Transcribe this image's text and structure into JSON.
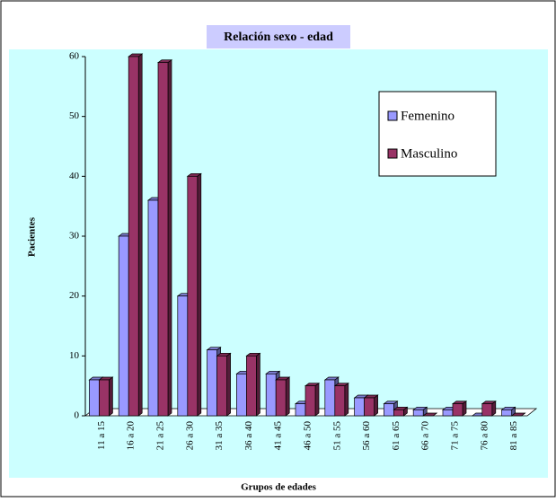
{
  "chart_data": {
    "type": "bar",
    "title": "Relación sexo - edad",
    "x_label": "Grupos de edades",
    "y_label": "Pacientes",
    "categories": [
      "11 a 15",
      "16 a 20",
      "21 a 25",
      "26 a 30",
      "31 a 35",
      "36 a 40",
      "41 a 45",
      "46 a 50",
      "51 a 55",
      "56 a 60",
      "61 a 65",
      "66 a 70",
      "71 a 75",
      "76 a 80",
      "81 a 85"
    ],
    "series": [
      {
        "name": "Femenino",
        "color": "#9999ff",
        "values": [
          6,
          30,
          36,
          20,
          11,
          7,
          7,
          2,
          6,
          3,
          2,
          1,
          1,
          0,
          1
        ]
      },
      {
        "name": "Masculino",
        "color": "#993366",
        "values": [
          6,
          60,
          59,
          40,
          10,
          10,
          6,
          5,
          5,
          3,
          1,
          0,
          2,
          2,
          0
        ]
      }
    ],
    "ylim": [
      0,
      60
    ],
    "yticks": [
      0,
      10,
      20,
      30,
      40,
      50,
      60
    ],
    "legend": "upper right"
  }
}
